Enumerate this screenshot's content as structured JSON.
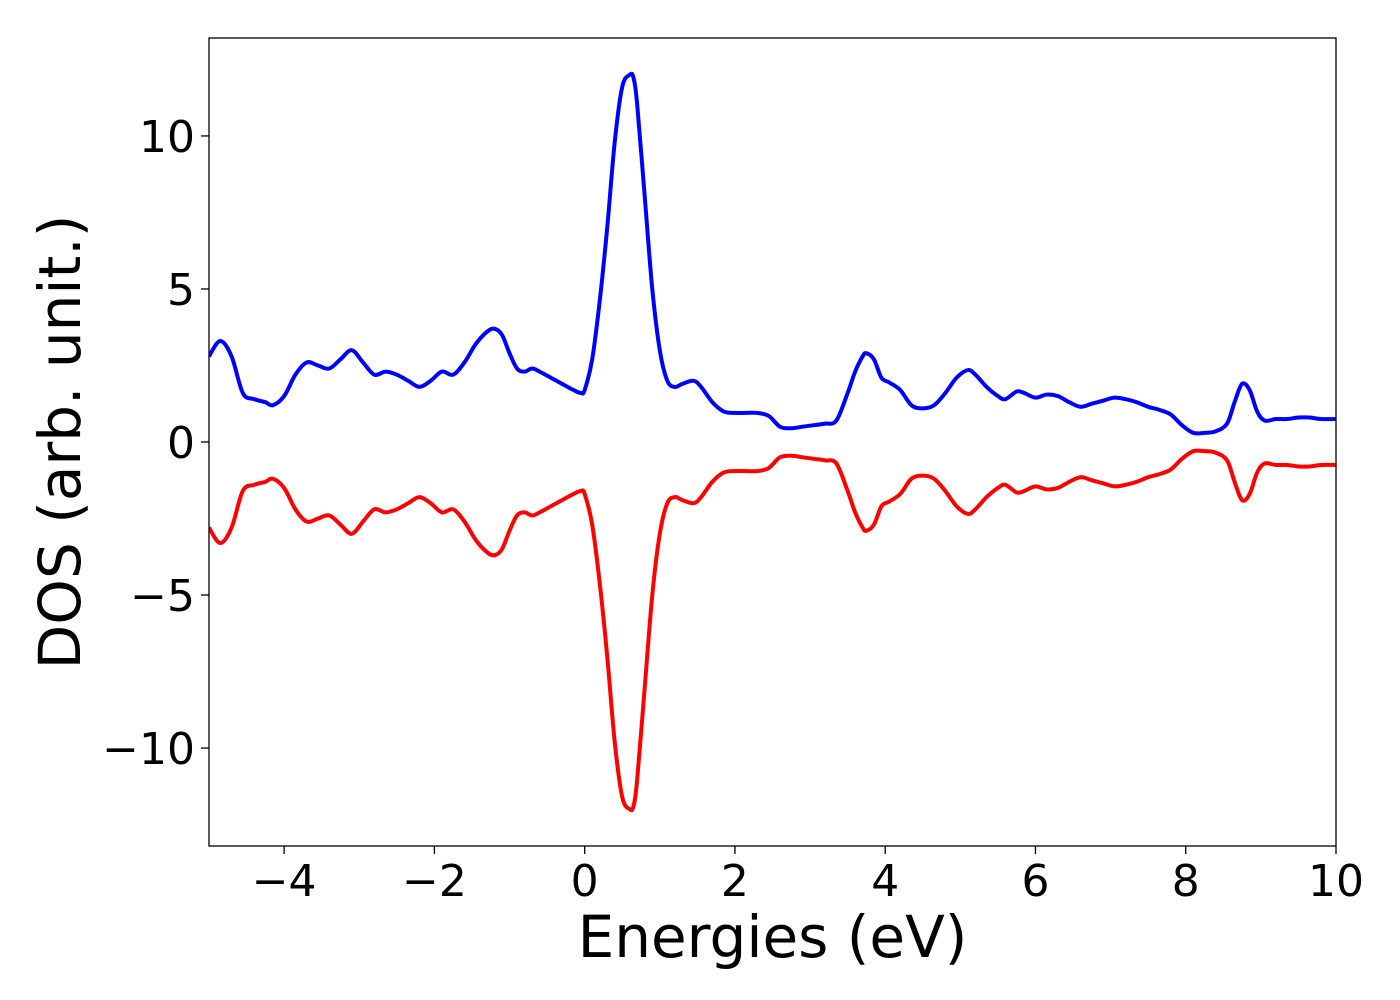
{
  "chart_data": {
    "type": "line",
    "xlabel": "Energies (eV)",
    "ylabel": "DOS (arb. unit.)",
    "xlim": [
      -5,
      10
    ],
    "ylim": [
      -13.2,
      13.2
    ],
    "x_ticks": [
      -4,
      -2,
      0,
      2,
      4,
      6,
      8,
      10
    ],
    "x_tick_labels": [
      "−4",
      "−2",
      "0",
      "2",
      "4",
      "6",
      "8",
      "10"
    ],
    "y_ticks": [
      -10,
      -5,
      0,
      5,
      10
    ],
    "y_tick_labels": [
      "−10",
      "−5",
      "0",
      "5",
      "10"
    ],
    "grid": false,
    "legend": "none",
    "series": [
      {
        "color": "#0000ff",
        "x": [
          -5.0,
          -4.85,
          -4.7,
          -4.55,
          -4.4,
          -4.25,
          -4.15,
          -4.0,
          -3.85,
          -3.7,
          -3.55,
          -3.4,
          -3.25,
          -3.1,
          -2.95,
          -2.8,
          -2.65,
          -2.5,
          -2.35,
          -2.2,
          -2.05,
          -1.9,
          -1.75,
          -1.6,
          -1.45,
          -1.3,
          -1.2,
          -1.1,
          -1.0,
          -0.9,
          -0.8,
          -0.7,
          -0.6,
          -0.45,
          -0.3,
          -0.15,
          -0.05,
          0.0,
          0.1,
          0.2,
          0.3,
          0.4,
          0.5,
          0.6,
          0.65,
          0.7,
          0.8,
          0.9,
          1.0,
          1.1,
          1.2,
          1.3,
          1.45,
          1.55,
          1.7,
          1.85,
          2.0,
          2.15,
          2.3,
          2.45,
          2.6,
          2.75,
          2.9,
          3.05,
          3.2,
          3.35,
          3.5,
          3.6,
          3.7,
          3.75,
          3.85,
          3.95,
          4.05,
          4.2,
          4.35,
          4.5,
          4.65,
          4.8,
          4.95,
          5.1,
          5.2,
          5.35,
          5.5,
          5.6,
          5.75,
          5.85,
          6.0,
          6.15,
          6.3,
          6.45,
          6.6,
          6.75,
          6.9,
          7.05,
          7.2,
          7.35,
          7.5,
          7.65,
          7.8,
          7.95,
          8.1,
          8.25,
          8.4,
          8.55,
          8.65,
          8.75,
          8.85,
          8.95,
          9.05,
          9.2,
          9.35,
          9.5,
          9.65,
          9.8,
          10.0
        ],
        "y": [
          2.8,
          3.3,
          2.8,
          1.6,
          1.4,
          1.3,
          1.2,
          1.5,
          2.2,
          2.6,
          2.5,
          2.4,
          2.7,
          3.0,
          2.6,
          2.2,
          2.3,
          2.2,
          2.0,
          1.8,
          2.0,
          2.3,
          2.2,
          2.6,
          3.2,
          3.6,
          3.7,
          3.5,
          2.9,
          2.4,
          2.3,
          2.4,
          2.3,
          2.1,
          1.9,
          1.7,
          1.6,
          1.7,
          2.7,
          4.6,
          7.0,
          9.8,
          11.6,
          12.0,
          11.9,
          11.0,
          8.0,
          5.0,
          3.0,
          2.0,
          1.8,
          1.9,
          2.0,
          1.8,
          1.3,
          1.0,
          0.95,
          0.95,
          0.95,
          0.85,
          0.5,
          0.45,
          0.5,
          0.55,
          0.6,
          0.7,
          1.6,
          2.3,
          2.8,
          2.9,
          2.7,
          2.1,
          1.95,
          1.7,
          1.2,
          1.1,
          1.2,
          1.6,
          2.1,
          2.35,
          2.2,
          1.8,
          1.5,
          1.4,
          1.65,
          1.6,
          1.45,
          1.55,
          1.5,
          1.3,
          1.15,
          1.25,
          1.35,
          1.45,
          1.4,
          1.3,
          1.15,
          1.05,
          0.9,
          0.55,
          0.3,
          0.3,
          0.35,
          0.6,
          1.3,
          1.9,
          1.7,
          1.0,
          0.7,
          0.75,
          0.75,
          0.8,
          0.8,
          0.75,
          0.75
        ]
      },
      {
        "color": "#ff0000",
        "x": [
          -5.0,
          -4.85,
          -4.7,
          -4.55,
          -4.4,
          -4.25,
          -4.15,
          -4.0,
          -3.85,
          -3.7,
          -3.55,
          -3.4,
          -3.25,
          -3.1,
          -2.95,
          -2.8,
          -2.65,
          -2.5,
          -2.35,
          -2.2,
          -2.05,
          -1.9,
          -1.75,
          -1.6,
          -1.45,
          -1.3,
          -1.2,
          -1.1,
          -1.0,
          -0.9,
          -0.8,
          -0.7,
          -0.6,
          -0.45,
          -0.3,
          -0.15,
          -0.05,
          0.0,
          0.1,
          0.2,
          0.3,
          0.4,
          0.5,
          0.6,
          0.65,
          0.7,
          0.8,
          0.9,
          1.0,
          1.1,
          1.2,
          1.3,
          1.45,
          1.55,
          1.7,
          1.85,
          2.0,
          2.15,
          2.3,
          2.45,
          2.6,
          2.75,
          2.9,
          3.05,
          3.2,
          3.35,
          3.5,
          3.6,
          3.7,
          3.75,
          3.85,
          3.95,
          4.05,
          4.2,
          4.35,
          4.5,
          4.65,
          4.8,
          4.95,
          5.1,
          5.2,
          5.35,
          5.5,
          5.6,
          5.75,
          5.85,
          6.0,
          6.15,
          6.3,
          6.45,
          6.6,
          6.75,
          6.9,
          7.05,
          7.2,
          7.35,
          7.5,
          7.65,
          7.8,
          7.95,
          8.1,
          8.25,
          8.4,
          8.55,
          8.65,
          8.75,
          8.85,
          8.95,
          9.05,
          9.2,
          9.35,
          9.5,
          9.65,
          9.8,
          10.0
        ],
        "y": [
          -2.8,
          -3.3,
          -2.8,
          -1.6,
          -1.4,
          -1.3,
          -1.2,
          -1.5,
          -2.2,
          -2.6,
          -2.5,
          -2.4,
          -2.7,
          -3.0,
          -2.6,
          -2.2,
          -2.3,
          -2.2,
          -2.0,
          -1.8,
          -2.0,
          -2.3,
          -2.2,
          -2.6,
          -3.2,
          -3.6,
          -3.7,
          -3.5,
          -2.9,
          -2.4,
          -2.3,
          -2.4,
          -2.3,
          -2.1,
          -1.9,
          -1.7,
          -1.6,
          -1.7,
          -2.7,
          -4.6,
          -7.0,
          -9.8,
          -11.6,
          -12.0,
          -11.9,
          -11.0,
          -8.0,
          -5.0,
          -3.0,
          -2.0,
          -1.8,
          -1.9,
          -2.0,
          -1.8,
          -1.3,
          -1.0,
          -0.95,
          -0.95,
          -0.95,
          -0.85,
          -0.5,
          -0.45,
          -0.5,
          -0.55,
          -0.6,
          -0.7,
          -1.6,
          -2.3,
          -2.8,
          -2.9,
          -2.7,
          -2.1,
          -1.95,
          -1.7,
          -1.2,
          -1.1,
          -1.2,
          -1.6,
          -2.1,
          -2.35,
          -2.2,
          -1.8,
          -1.5,
          -1.4,
          -1.65,
          -1.6,
          -1.45,
          -1.55,
          -1.5,
          -1.3,
          -1.15,
          -1.25,
          -1.35,
          -1.45,
          -1.4,
          -1.3,
          -1.15,
          -1.05,
          -0.9,
          -0.55,
          -0.3,
          -0.3,
          -0.35,
          -0.6,
          -1.3,
          -1.9,
          -1.7,
          -1.0,
          -0.7,
          -0.75,
          -0.75,
          -0.8,
          -0.8,
          -0.75,
          -0.75
        ]
      }
    ]
  }
}
